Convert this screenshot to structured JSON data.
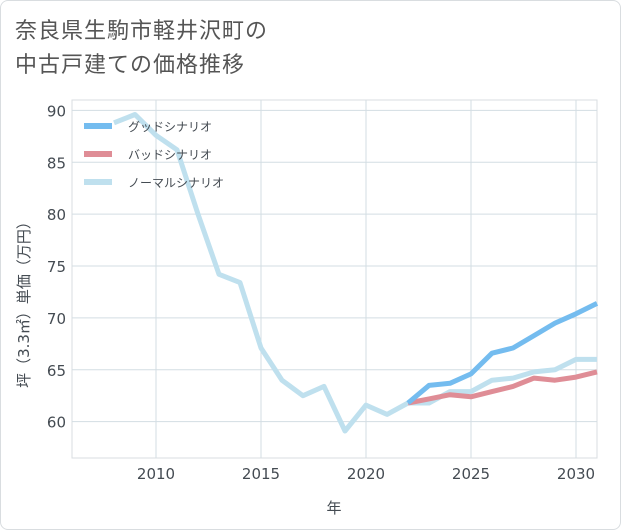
{
  "title_line1": "奈良県生駒市軽井沢町の",
  "title_line2": "中古戸建ての価格推移",
  "chart_data": {
    "type": "line",
    "title": "奈良県生駒市軽井沢町の中古戸建ての価格推移",
    "xlabel": "年",
    "ylabel": "坪（3.3㎡）単価（万円）",
    "xlim": [
      2006,
      2031
    ],
    "ylim": [
      56.5,
      91
    ],
    "x_ticks": [
      2010,
      2015,
      2020,
      2025,
      2030
    ],
    "y_ticks": [
      60,
      65,
      70,
      75,
      80,
      85,
      90
    ],
    "grid": true,
    "legend_position": "top-left",
    "series": [
      {
        "name": "グッドシナリオ",
        "color": "#74bcef",
        "x": [
          2022,
          2023,
          2024,
          2025,
          2026,
          2027,
          2028,
          2029,
          2030,
          2031
        ],
        "values": [
          61.8,
          63.5,
          63.7,
          64.6,
          66.6,
          67.1,
          68.3,
          69.5,
          70.4,
          71.4
        ]
      },
      {
        "name": "バッドシナリオ",
        "color": "#df8d96",
        "x": [
          2022,
          2023,
          2024,
          2025,
          2026,
          2027,
          2028,
          2029,
          2030,
          2031
        ],
        "values": [
          61.8,
          62.2,
          62.6,
          62.4,
          62.9,
          63.4,
          64.2,
          64.0,
          64.3,
          64.8
        ]
      },
      {
        "name": "ノーマルシナリオ",
        "color": "#bfe0ee",
        "x": [
          2008,
          2009,
          2010,
          2011,
          2012,
          2013,
          2014,
          2015,
          2016,
          2017,
          2018,
          2019,
          2020,
          2021,
          2022,
          2023,
          2024,
          2025,
          2026,
          2027,
          2028,
          2029,
          2030,
          2031
        ],
        "values": [
          88.8,
          89.6,
          87.6,
          86.2,
          80.0,
          74.2,
          73.4,
          67.1,
          64.0,
          62.5,
          63.4,
          59.1,
          61.6,
          60.7,
          61.8,
          61.8,
          62.9,
          62.9,
          64.0,
          64.2,
          64.8,
          65.0,
          66.0,
          66.0
        ]
      }
    ]
  }
}
